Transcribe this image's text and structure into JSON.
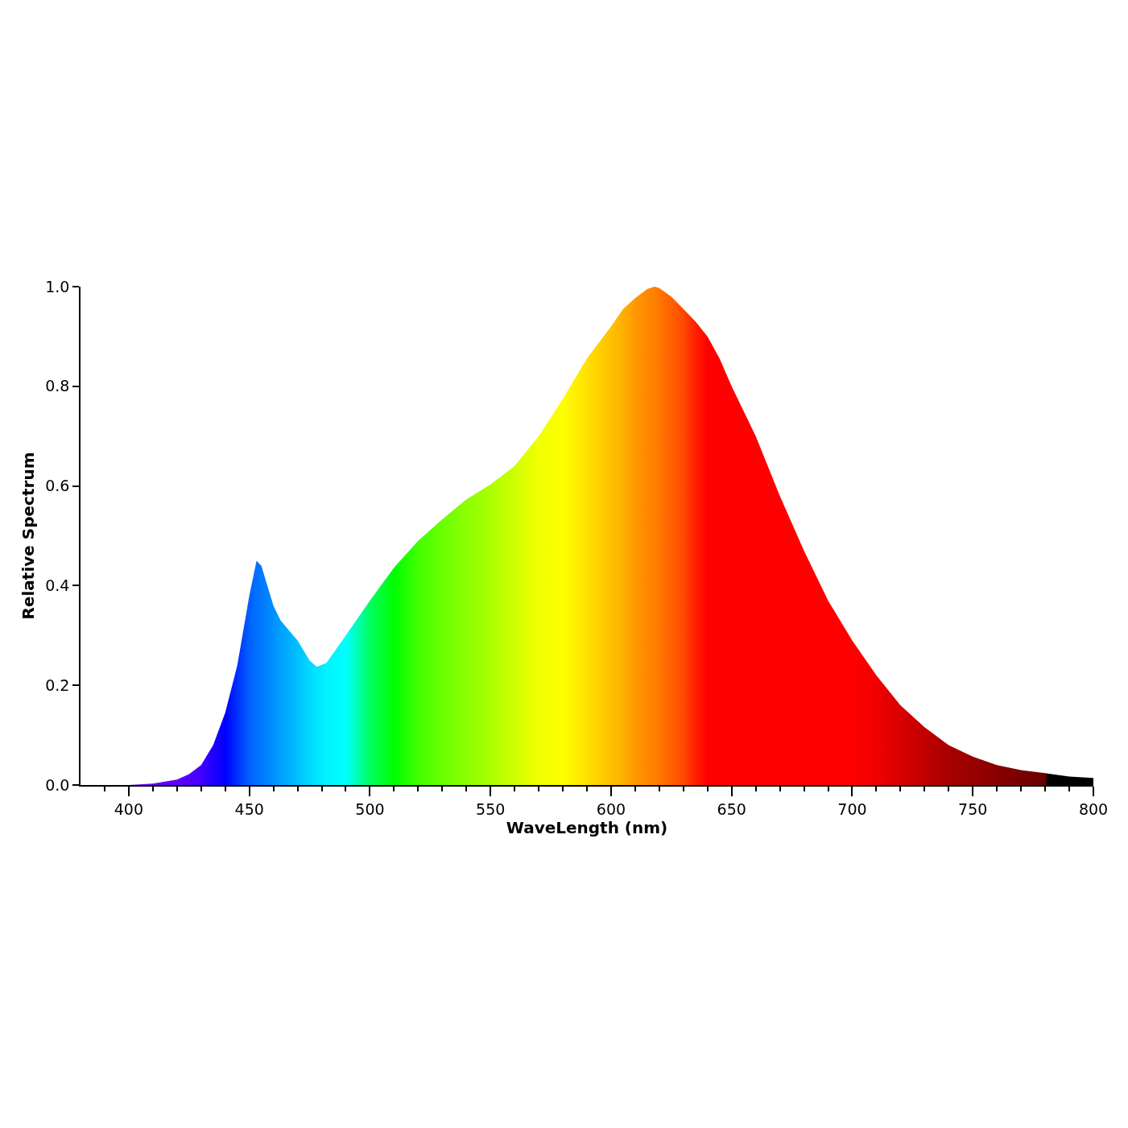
{
  "chart_data": {
    "type": "area",
    "xlabel": "WaveLength (nm)",
    "ylabel": "Relative Spectrum",
    "x": [
      380,
      400,
      410,
      420,
      425,
      430,
      435,
      440,
      445,
      450,
      453,
      455,
      460,
      463,
      470,
      475,
      478,
      482,
      490,
      500,
      510,
      520,
      530,
      540,
      550,
      560,
      570,
      580,
      590,
      600,
      605,
      610,
      615,
      618,
      620,
      625,
      630,
      635,
      640,
      645,
      650,
      660,
      670,
      680,
      690,
      700,
      710,
      720,
      730,
      740,
      750,
      760,
      770,
      780,
      781,
      790,
      800
    ],
    "values": [
      0,
      0,
      0.003,
      0.011,
      0.022,
      0.04,
      0.08,
      0.145,
      0.24,
      0.38,
      0.45,
      0.44,
      0.36,
      0.33,
      0.29,
      0.25,
      0.237,
      0.245,
      0.3,
      0.37,
      0.436,
      0.49,
      0.533,
      0.573,
      0.603,
      0.64,
      0.7,
      0.775,
      0.856,
      0.92,
      0.955,
      0.977,
      0.995,
      1,
      0.997,
      0.98,
      0.955,
      0.93,
      0.9,
      0.856,
      0.8,
      0.7,
      0.58,
      0.47,
      0.37,
      0.29,
      0.22,
      0.16,
      0.116,
      0.08,
      0.057,
      0.04,
      0.03,
      0.024,
      0.023,
      0.017,
      0.014
    ],
    "colors": [
      "#6a00ff",
      "#6f00ff",
      "#6a00ff",
      "#6000ff",
      "#5500ff",
      "#4000ff",
      "#2000ff",
      "#0000ff",
      "#0030ff",
      "#0060ff",
      "#0070ff",
      "#0078ff",
      "#0090ff",
      "#00a0ff",
      "#00c0ff",
      "#00d8ff",
      "#00e4ff",
      "#00f4ff",
      "#00ffff",
      "#00ff60",
      "#00ff00",
      "#40ff00",
      "#6aff00",
      "#8cff00",
      "#aaff00",
      "#d0ff00",
      "#f0ff00",
      "#ffff00",
      "#ffe000",
      "#ffc000",
      "#ffb000",
      "#ff9800",
      "#ff8800",
      "#ff8000",
      "#ff7800",
      "#ff6000",
      "#ff4800",
      "#ff2000",
      "#ff0000",
      "#ff0000",
      "#ff0000",
      "#ff0000",
      "#ff0000",
      "#ff0000",
      "#ff0000",
      "#ff0000",
      "#f00000",
      "#d80000",
      "#c00000",
      "#a80000",
      "#980000",
      "#880000",
      "#780000",
      "#6a0000",
      "#000000",
      "#000000",
      "#000000"
    ],
    "xlim": [
      380,
      800
    ],
    "xticks": [
      {
        "value": 390,
        "label": null
      },
      400,
      {
        "value": 410,
        "label": null
      },
      {
        "value": 420,
        "label": null
      },
      {
        "value": 430,
        "label": null
      },
      {
        "value": 440,
        "label": null
      },
      450,
      {
        "value": 460,
        "label": null
      },
      {
        "value": 470,
        "label": null
      },
      {
        "value": 480,
        "label": null
      },
      {
        "value": 490,
        "label": null
      },
      500,
      {
        "value": 510,
        "label": null
      },
      {
        "value": 520,
        "label": null
      },
      {
        "value": 530,
        "label": null
      },
      {
        "value": 540,
        "label": null
      },
      550,
      {
        "value": 560,
        "label": null
      },
      {
        "value": 570,
        "label": null
      },
      {
        "value": 580,
        "label": null
      },
      {
        "value": 590,
        "label": null
      },
      600,
      {
        "value": 610,
        "label": null
      },
      {
        "value": 620,
        "label": null
      },
      {
        "value": 630,
        "label": null
      },
      {
        "value": 640,
        "label": null
      },
      650,
      {
        "value": 660,
        "label": null
      },
      {
        "value": 670,
        "label": null
      },
      {
        "value": 680,
        "label": null
      },
      {
        "value": 690,
        "label": null
      },
      700,
      {
        "value": 710,
        "label": null
      },
      {
        "value": 720,
        "label": null
      },
      {
        "value": 730,
        "label": null
      },
      {
        "value": 740,
        "label": null
      },
      750,
      {
        "value": 760,
        "label": null
      },
      {
        "value": 770,
        "label": null
      },
      {
        "value": 780,
        "label": null
      },
      {
        "value": 790,
        "label": null
      },
      800
    ],
    "ylim": [
      0,
      1
    ],
    "yticks": [
      {
        "value": 0,
        "label": "0.0"
      },
      {
        "value": 0.2,
        "label": "0.2"
      },
      {
        "value": 0.4,
        "label": "0.4"
      },
      {
        "value": 0.6,
        "label": "0.6"
      },
      {
        "value": 0.8,
        "label": "0.8"
      },
      {
        "value": 1,
        "label": "1.0"
      }
    ],
    "grid": false
  }
}
